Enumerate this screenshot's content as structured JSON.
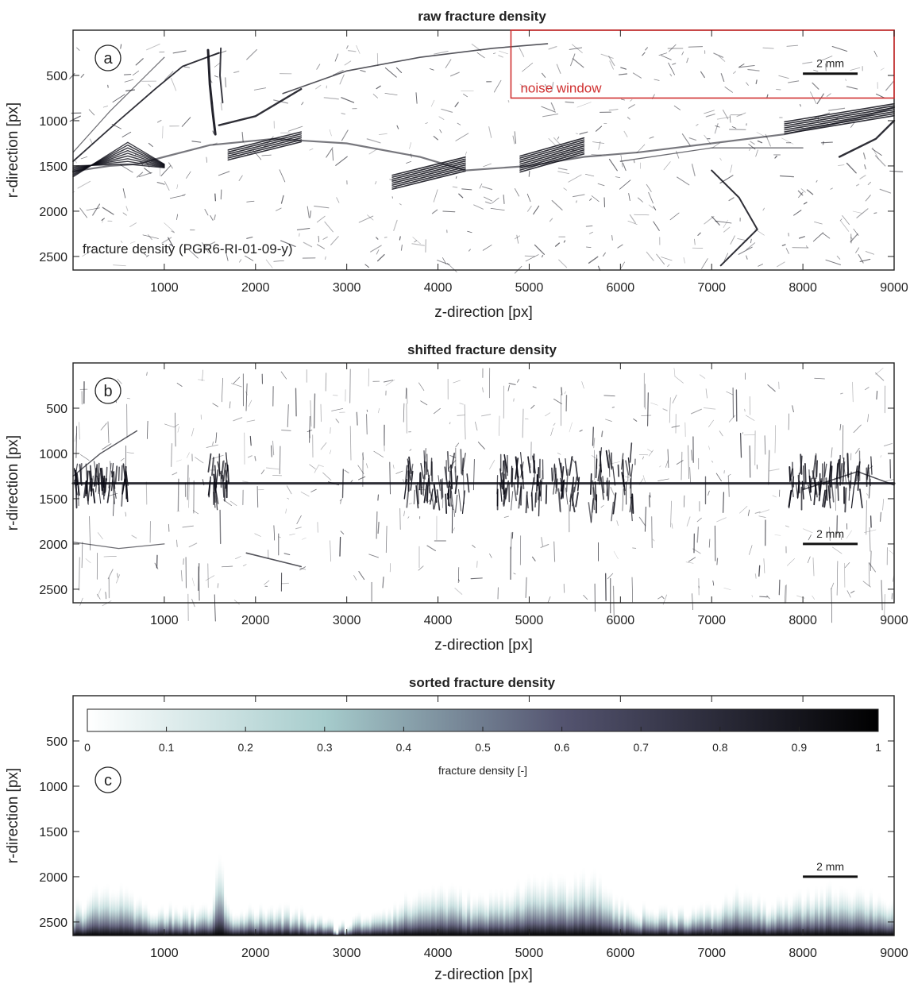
{
  "colors": {
    "ink": "#0a0a14",
    "noise_box": "#d03030",
    "colormap": [
      "#ffffff",
      "#a6cccc",
      "#545470",
      "#000000"
    ]
  },
  "chart_data": [
    {
      "panel": "a",
      "type": "heatmap",
      "title": "raw fracture density",
      "xlabel": "z-direction [px]",
      "ylabel": "r-direction [px]",
      "xlim": [
        0,
        9000
      ],
      "ylim": [
        2650,
        0
      ],
      "y_reversed": true,
      "xticks": [
        "1000",
        "2000",
        "3000",
        "4000",
        "5000",
        "6000",
        "7000",
        "8000",
        "9000"
      ],
      "yticks": [
        "500",
        "1000",
        "1500",
        "2000",
        "2500"
      ],
      "annotations": {
        "sample": "fracture density (PGR6-RI-01-09-y)",
        "noise_window": "noise window",
        "scale_bar": "2 mm"
      },
      "noise_window_z": [
        4800,
        9000
      ],
      "noise_window_r": [
        0,
        750
      ],
      "scale_bar_z": [
        8000,
        8600
      ]
    },
    {
      "panel": "b",
      "type": "heatmap",
      "title": "shifted fracture density",
      "xlabel": "z-direction [px]",
      "ylabel": "r-direction [px]",
      "xlim": [
        0,
        9000
      ],
      "ylim": [
        2650,
        0
      ],
      "y_reversed": true,
      "xticks": [
        "1000",
        "2000",
        "3000",
        "4000",
        "5000",
        "6000",
        "7000",
        "8000",
        "9000"
      ],
      "yticks": [
        "500",
        "1000",
        "1500",
        "2000",
        "2500"
      ],
      "annotations": {
        "scale_bar": "2 mm"
      },
      "scale_bar_z": [
        8000,
        8600
      ],
      "centerline_r": 1330
    },
    {
      "panel": "c",
      "type": "heatmap",
      "title": "sorted fracture density",
      "xlabel": "z-direction [px]",
      "ylabel": "r-direction [px]",
      "xlim": [
        0,
        9000
      ],
      "ylim": [
        2650,
        0
      ],
      "y_reversed": true,
      "xticks": [
        "1000",
        "2000",
        "3000",
        "4000",
        "5000",
        "6000",
        "7000",
        "8000",
        "9000"
      ],
      "yticks": [
        "500",
        "1000",
        "1500",
        "2000",
        "2500"
      ],
      "annotations": {
        "scale_bar": "2 mm"
      },
      "scale_bar_z": [
        8000,
        8600
      ],
      "colorbar": {
        "label": "fracture density [-]",
        "range": [
          0,
          1
        ],
        "ticks": [
          "0",
          "0.1",
          "0.2",
          "0.3",
          "0.4",
          "0.5",
          "0.6",
          "0.7",
          "0.8",
          "0.9",
          "1"
        ],
        "orientation": "horizontal"
      }
    }
  ]
}
